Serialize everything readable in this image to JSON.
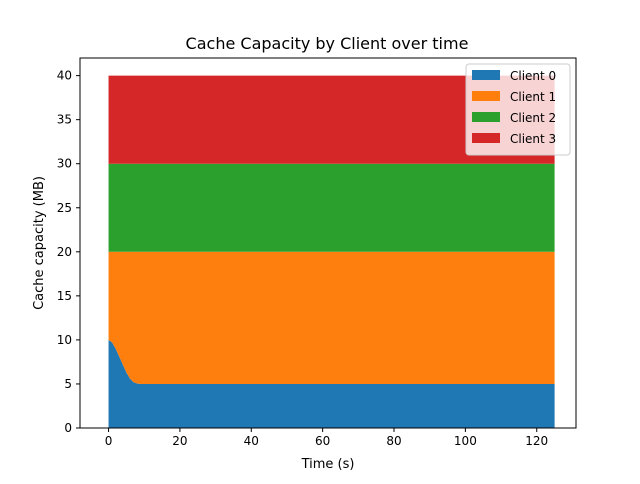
{
  "chart_data": {
    "type": "area",
    "stacked": true,
    "title": "Cache Capacity by Client over time",
    "xlabel": "Time (s)",
    "ylabel": "Cache capacity (MB)",
    "xlim": [
      -8,
      131
    ],
    "ylim": [
      0,
      42
    ],
    "xticks": [
      0,
      20,
      40,
      60,
      80,
      100,
      120
    ],
    "yticks": [
      0,
      5,
      10,
      15,
      20,
      25,
      30,
      35,
      40
    ],
    "grid": false,
    "legend_position": "upper right",
    "x": [
      0,
      1,
      2,
      3,
      4,
      5,
      6,
      7,
      8,
      9,
      10,
      125
    ],
    "series": [
      {
        "name": "Client 0",
        "color": "#1f77b4",
        "values": [
          10,
          9.7,
          9.0,
          8.1,
          7.2,
          6.3,
          5.6,
          5.2,
          5.05,
          5.0,
          5.0,
          5.0
        ]
      },
      {
        "name": "Client 1",
        "color": "#ff7f0e",
        "values": [
          10,
          10.3,
          11.0,
          11.9,
          12.8,
          13.7,
          14.4,
          14.8,
          14.95,
          15.0,
          15.0,
          15.0
        ]
      },
      {
        "name": "Client 2",
        "color": "#2ca02c",
        "values": [
          10,
          10,
          10,
          10,
          10,
          10,
          10,
          10,
          10,
          10,
          10,
          10
        ]
      },
      {
        "name": "Client 3",
        "color": "#d62728",
        "values": [
          10,
          10,
          10,
          10,
          10,
          10,
          10,
          10,
          10,
          10,
          10,
          10
        ]
      }
    ]
  }
}
